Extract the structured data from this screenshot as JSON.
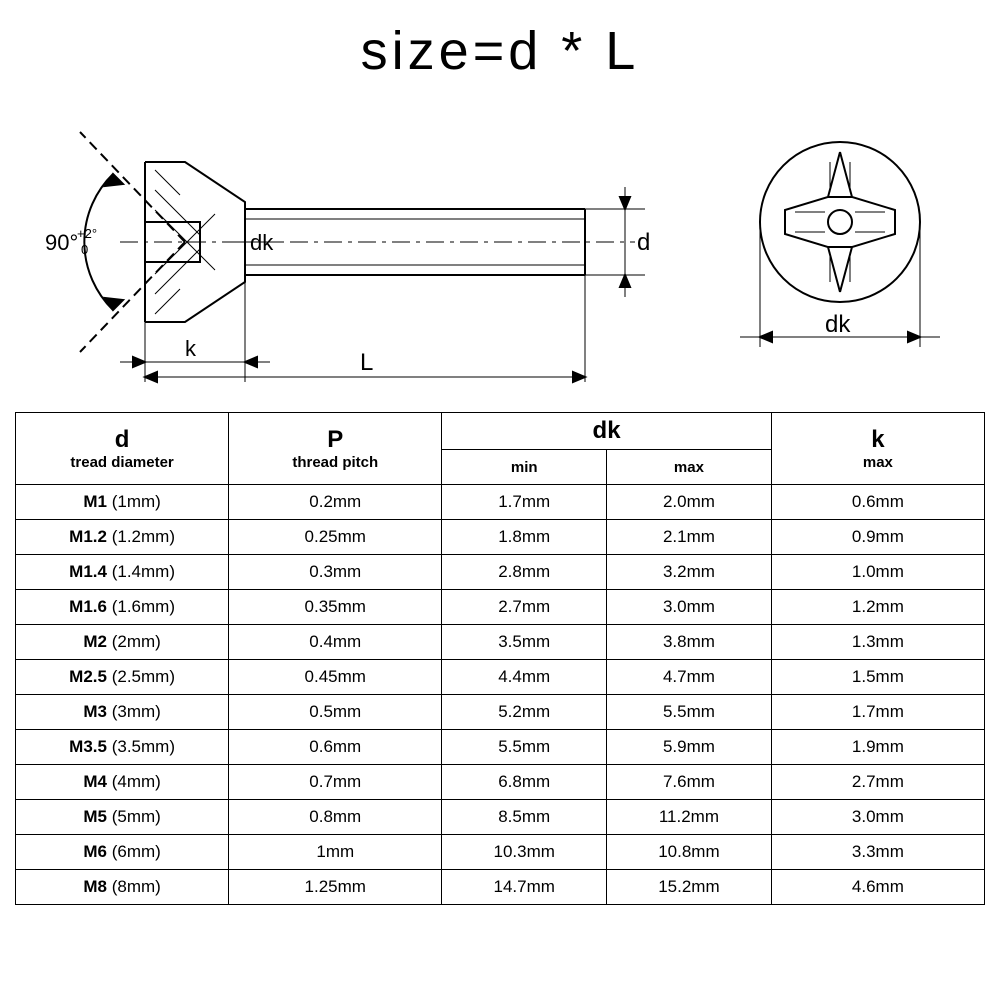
{
  "title": "size=d * L",
  "diagram": {
    "angle_label": "90°",
    "angle_tol_upper": "+2°",
    "angle_tol_lower": "0",
    "dim_dk": "dk",
    "dim_d": "d",
    "dim_k": "k",
    "dim_L": "L",
    "top_view_label": "dk",
    "stroke": "#000000",
    "stroke_width": 2
  },
  "table": {
    "columns": {
      "d_main": "d",
      "d_sub": "tread diameter",
      "p_main": "P",
      "p_sub": "thread pitch",
      "dk_main": "dk",
      "dk_min": "min",
      "dk_max": "max",
      "k_main": "k",
      "k_sub": "max"
    },
    "rows": [
      {
        "d_b": "M1",
        "d_p": "(1mm)",
        "p": "0.2mm",
        "dkmin": "1.7mm",
        "dkmax": "2.0mm",
        "k": "0.6mm"
      },
      {
        "d_b": "M1.2",
        "d_p": "(1.2mm)",
        "p": "0.25mm",
        "dkmin": "1.8mm",
        "dkmax": "2.1mm",
        "k": "0.9mm"
      },
      {
        "d_b": "M1.4",
        "d_p": "(1.4mm)",
        "p": "0.3mm",
        "dkmin": "2.8mm",
        "dkmax": "3.2mm",
        "k": "1.0mm"
      },
      {
        "d_b": "M1.6",
        "d_p": "(1.6mm)",
        "p": "0.35mm",
        "dkmin": "2.7mm",
        "dkmax": "3.0mm",
        "k": "1.2mm"
      },
      {
        "d_b": "M2",
        "d_p": "(2mm)",
        "p": "0.4mm",
        "dkmin": "3.5mm",
        "dkmax": "3.8mm",
        "k": "1.3mm"
      },
      {
        "d_b": "M2.5",
        "d_p": "(2.5mm)",
        "p": "0.45mm",
        "dkmin": "4.4mm",
        "dkmax": "4.7mm",
        "k": "1.5mm"
      },
      {
        "d_b": "M3",
        "d_p": "(3mm)",
        "p": "0.5mm",
        "dkmin": "5.2mm",
        "dkmax": "5.5mm",
        "k": "1.7mm"
      },
      {
        "d_b": "M3.5",
        "d_p": "(3.5mm)",
        "p": "0.6mm",
        "dkmin": "5.5mm",
        "dkmax": "5.9mm",
        "k": "1.9mm"
      },
      {
        "d_b": "M4",
        "d_p": "(4mm)",
        "p": "0.7mm",
        "dkmin": "6.8mm",
        "dkmax": "7.6mm",
        "k": "2.7mm"
      },
      {
        "d_b": "M5",
        "d_p": "(5mm)",
        "p": "0.8mm",
        "dkmin": "8.5mm",
        "dkmax": "11.2mm",
        "k": "3.0mm"
      },
      {
        "d_b": "M6",
        "d_p": "(6mm)",
        "p": "1mm",
        "dkmin": "10.3mm",
        "dkmax": "10.8mm",
        "k": "3.3mm"
      },
      {
        "d_b": "M8",
        "d_p": "(8mm)",
        "p": "1.25mm",
        "dkmin": "14.7mm",
        "dkmax": "15.2mm",
        "k": "4.6mm"
      }
    ]
  }
}
